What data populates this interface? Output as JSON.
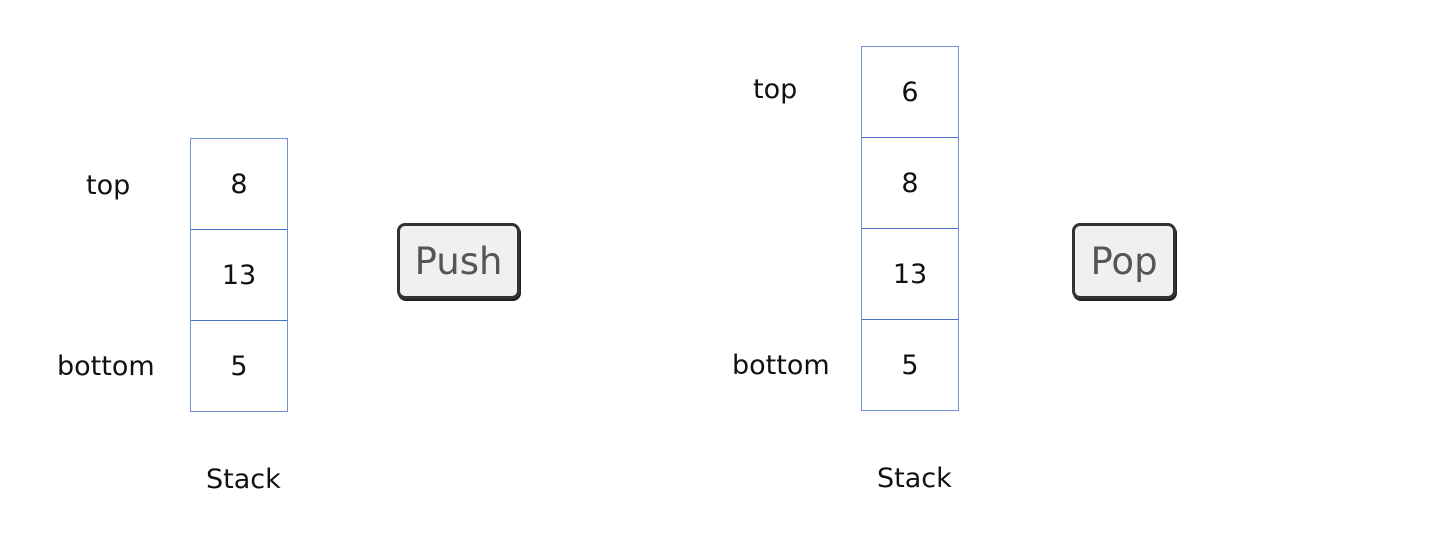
{
  "left_stack": {
    "top_label": "top",
    "bottom_label": "bottom",
    "cells": [
      "8",
      "13",
      "5"
    ],
    "caption": "Stack"
  },
  "right_stack": {
    "top_label": "top",
    "bottom_label": "bottom",
    "cells": [
      "6",
      "8",
      "13",
      "5"
    ],
    "caption": "Stack"
  },
  "push_button": {
    "label": "Push"
  },
  "pop_button": {
    "label": "Pop"
  },
  "colors": {
    "cell_border": "#4a6fc9",
    "button_bg": "#f0f0f0",
    "button_border": "#333333",
    "button_text": "#555555"
  }
}
